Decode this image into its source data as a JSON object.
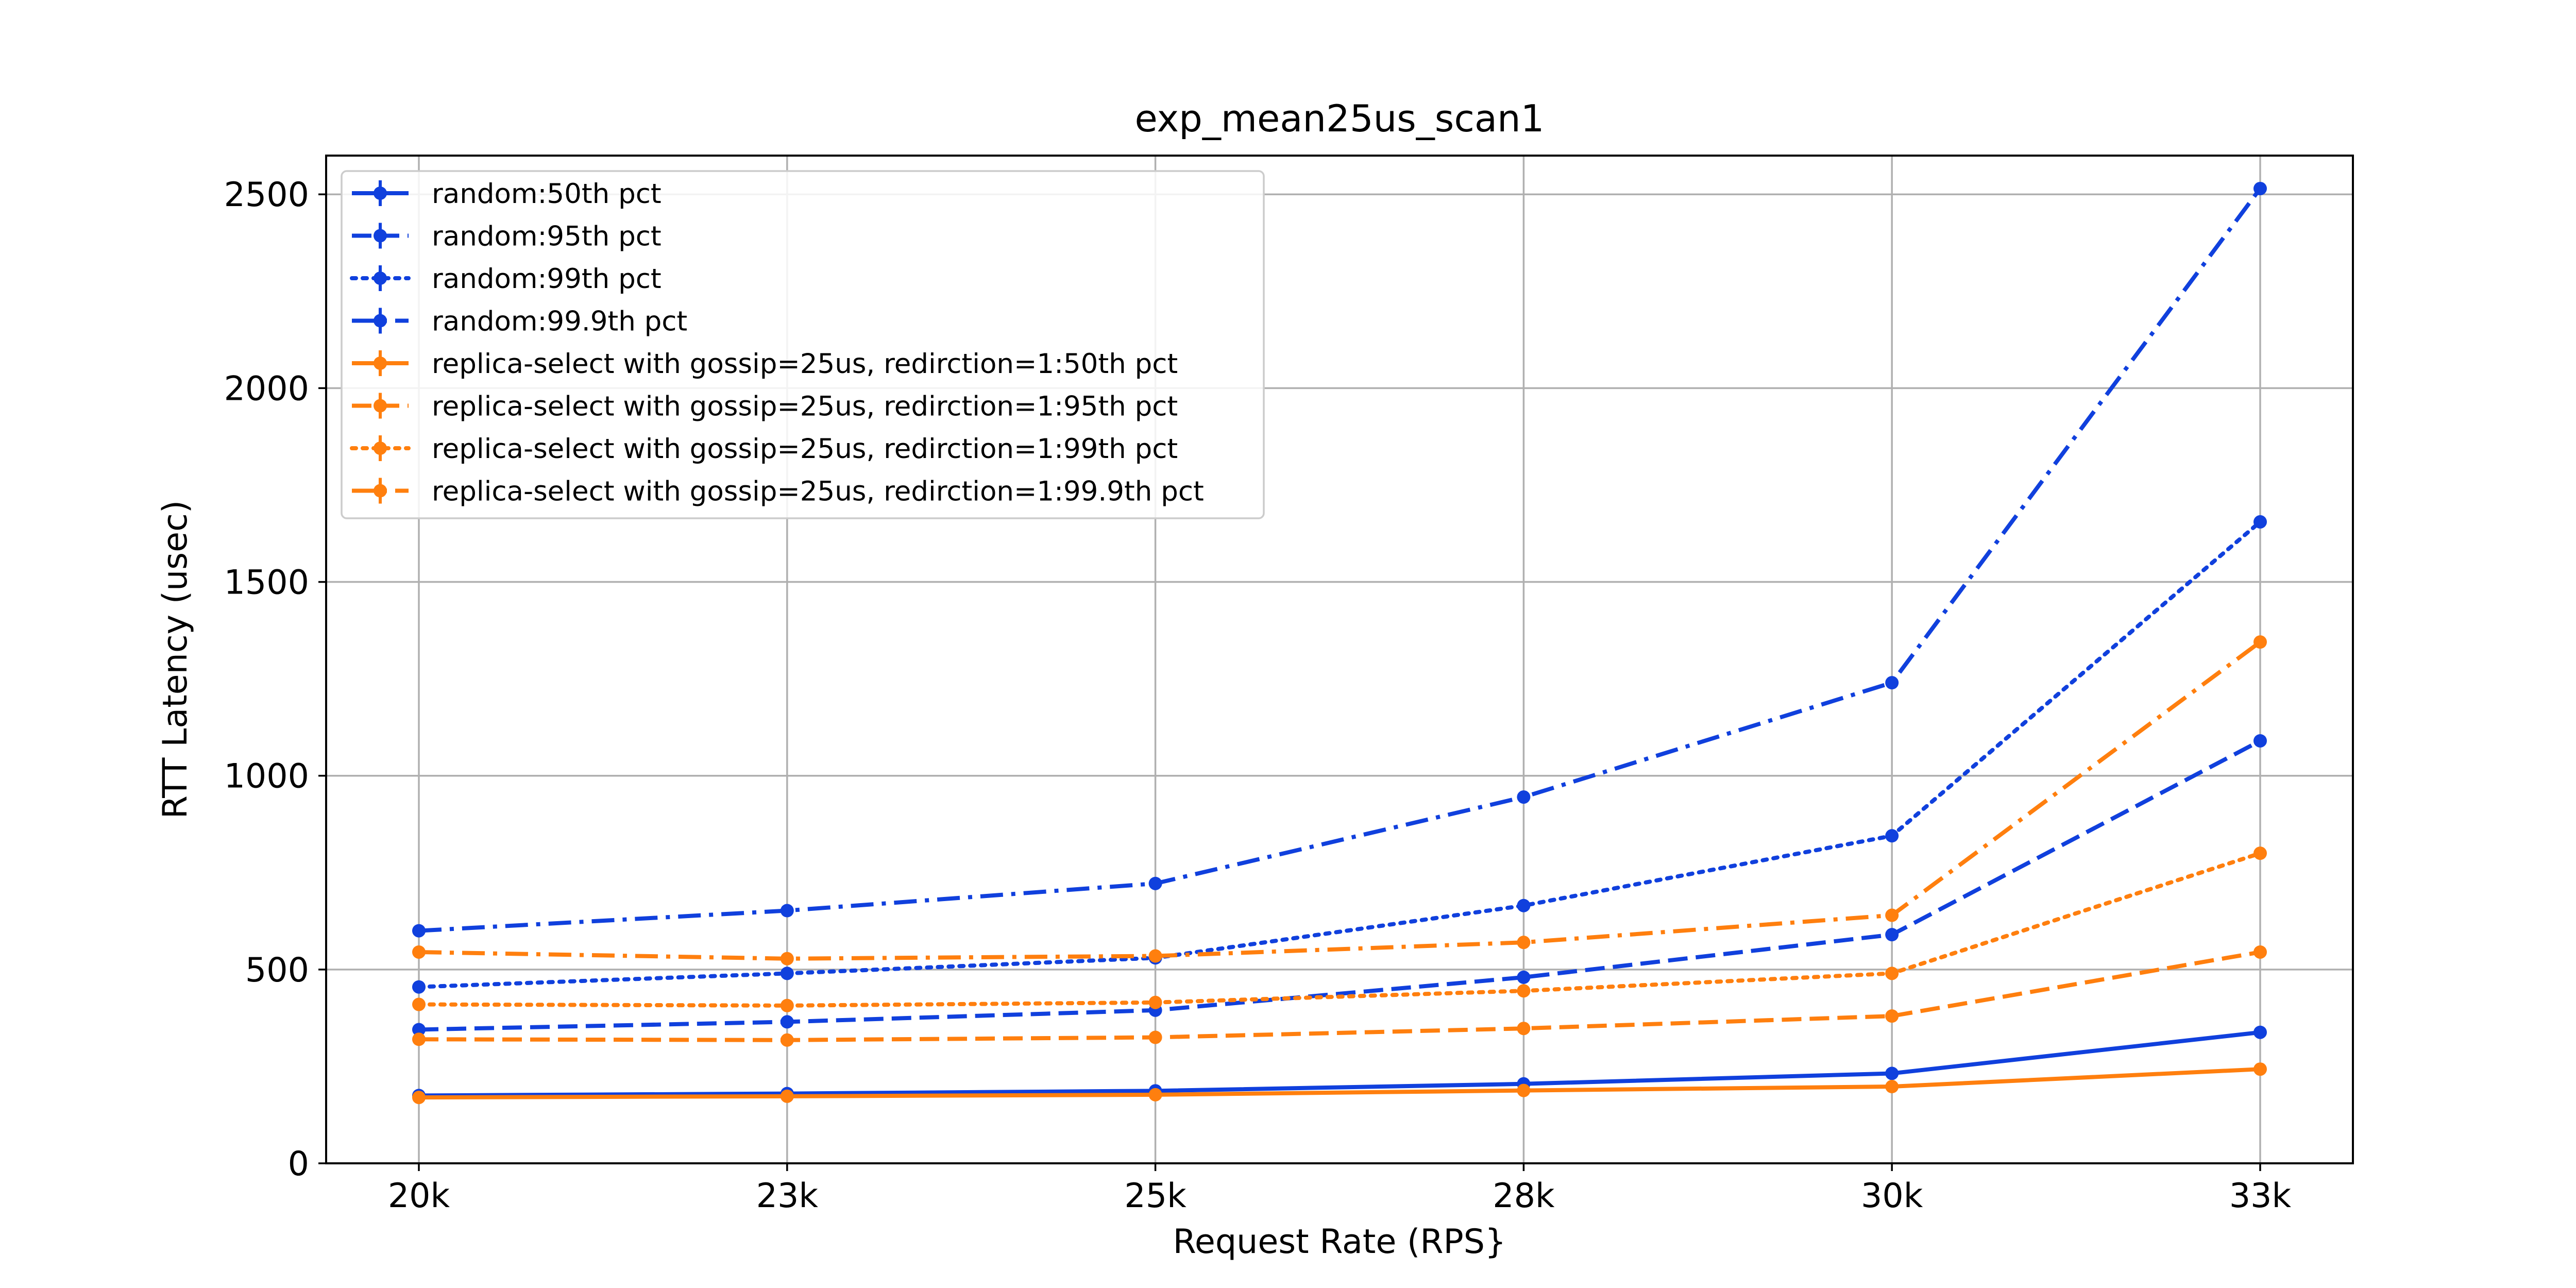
{
  "chart_data": {
    "type": "line",
    "title": "exp_mean25us_scan1",
    "xlabel": "Request Rate (RPS}",
    "ylabel": "RTT Latency (usec)",
    "categories": [
      "20k",
      "23k",
      "25k",
      "28k",
      "30k",
      "33k"
    ],
    "ylim": [
      0,
      2600
    ],
    "yticks": [
      0,
      500,
      1000,
      1500,
      2000,
      2500
    ],
    "grid": true,
    "legend_position": "top-left",
    "series": [
      {
        "name": "random:50th pct",
        "color": "#1040dd",
        "dash": "solid",
        "values": [
          175,
          180,
          187,
          205,
          232,
          338
        ]
      },
      {
        "name": "random:95th pct",
        "color": "#1040dd",
        "dash": "dashed",
        "values": [
          345,
          365,
          395,
          480,
          590,
          1090
        ]
      },
      {
        "name": "random:99th pct",
        "color": "#1040dd",
        "dash": "dotted",
        "values": [
          455,
          490,
          530,
          665,
          845,
          1655
        ]
      },
      {
        "name": "random:99.9th pct",
        "color": "#1040dd",
        "dash": "dashdot",
        "values": [
          600,
          652,
          722,
          945,
          1240,
          2515
        ]
      },
      {
        "name": "replica-select with gossip=25us, redirction=1:50th pct",
        "color": "#ff7f0e",
        "dash": "solid",
        "values": [
          170,
          173,
          177,
          188,
          198,
          243
        ]
      },
      {
        "name": "replica-select with gossip=25us, redirction=1:95th pct",
        "color": "#ff7f0e",
        "dash": "dashed",
        "values": [
          320,
          318,
          325,
          348,
          380,
          545
        ]
      },
      {
        "name": "replica-select with gossip=25us, redirction=1:99th pct",
        "color": "#ff7f0e",
        "dash": "dotted",
        "values": [
          410,
          407,
          415,
          445,
          490,
          800
        ]
      },
      {
        "name": "replica-select with gossip=25us, redirction=1:99.9th pct",
        "color": "#ff7f0e",
        "dash": "dashdot",
        "values": [
          545,
          528,
          535,
          570,
          640,
          1345
        ]
      }
    ]
  }
}
